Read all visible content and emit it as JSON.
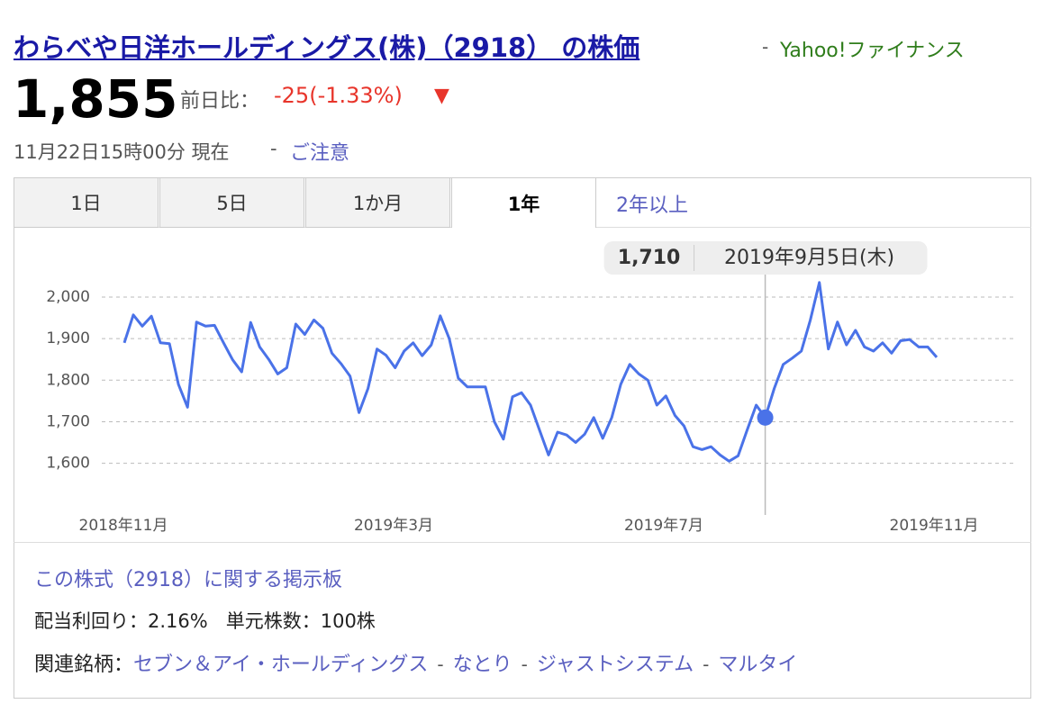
{
  "header": {
    "title": "わらべや日洋ホールディングス(株)（2918） の株価",
    "separator": "-",
    "source": "Yahoo!ファイナンス"
  },
  "quote": {
    "price": "1,855",
    "change_label": "前日比：",
    "change": "-25(-1.33%)",
    "arrow": "▼",
    "timestamp": "11月22日15時00分 現在",
    "separator": "-",
    "notice": "ご注意"
  },
  "tabs": {
    "items": [
      "1日",
      "5日",
      "1か月",
      "1年"
    ],
    "active": 3,
    "link": "2年以上"
  },
  "chart": {
    "type": "line",
    "color": "#4a72e8",
    "grid": true,
    "values": [
      1890,
      1957,
      1930,
      1954,
      1890,
      1888,
      1790,
      1735,
      1940,
      1930,
      1932,
      1890,
      1849,
      1820,
      1939,
      1880,
      1850,
      1815,
      1830,
      1935,
      1910,
      1945,
      1925,
      1865,
      1840,
      1810,
      1722,
      1780,
      1875,
      1860,
      1830,
      1870,
      1890,
      1859,
      1885,
      1955,
      1900,
      1805,
      1784,
      1784,
      1784,
      1700,
      1658,
      1760,
      1770,
      1740,
      1680,
      1620,
      1675,
      1668,
      1650,
      1670,
      1710,
      1660,
      1710,
      1790,
      1838,
      1815,
      1800,
      1740,
      1762,
      1715,
      1690,
      1640,
      1633,
      1640,
      1620,
      1605,
      1618,
      1680,
      1740,
      1710,
      1780,
      1838,
      1853,
      1870,
      1945,
      2035,
      1875,
      1940,
      1885,
      1920,
      1880,
      1870,
      1890,
      1865,
      1895,
      1898,
      1880,
      1880,
      1855
    ],
    "ylim": [
      1480,
      2130
    ],
    "yticks": [
      {
        "value": 1600,
        "label": "1,600"
      },
      {
        "value": 1700,
        "label": "1,700"
      },
      {
        "value": 1800,
        "label": "1,800"
      },
      {
        "value": 1900,
        "label": "1,900"
      },
      {
        "value": 2000,
        "label": "2,000"
      }
    ],
    "xlabels": [
      "2018年11月",
      "2019年3月",
      "2019年7月",
      "2019年11月"
    ],
    "tooltip": {
      "value_label": "1,710",
      "date": "2019年9月5日(木)"
    }
  },
  "footer": {
    "board": "この株式（2918）に関する掲示板",
    "yield_label": "配当利回り：",
    "yield": "2.16%",
    "unit_label": "単元株数：",
    "unit": "100株",
    "related_label": "関連銘柄：",
    "separator": "-",
    "related": [
      "セブン＆アイ・ホールディングス",
      "なとり",
      "ジャストシステム",
      "マルタイ"
    ]
  }
}
